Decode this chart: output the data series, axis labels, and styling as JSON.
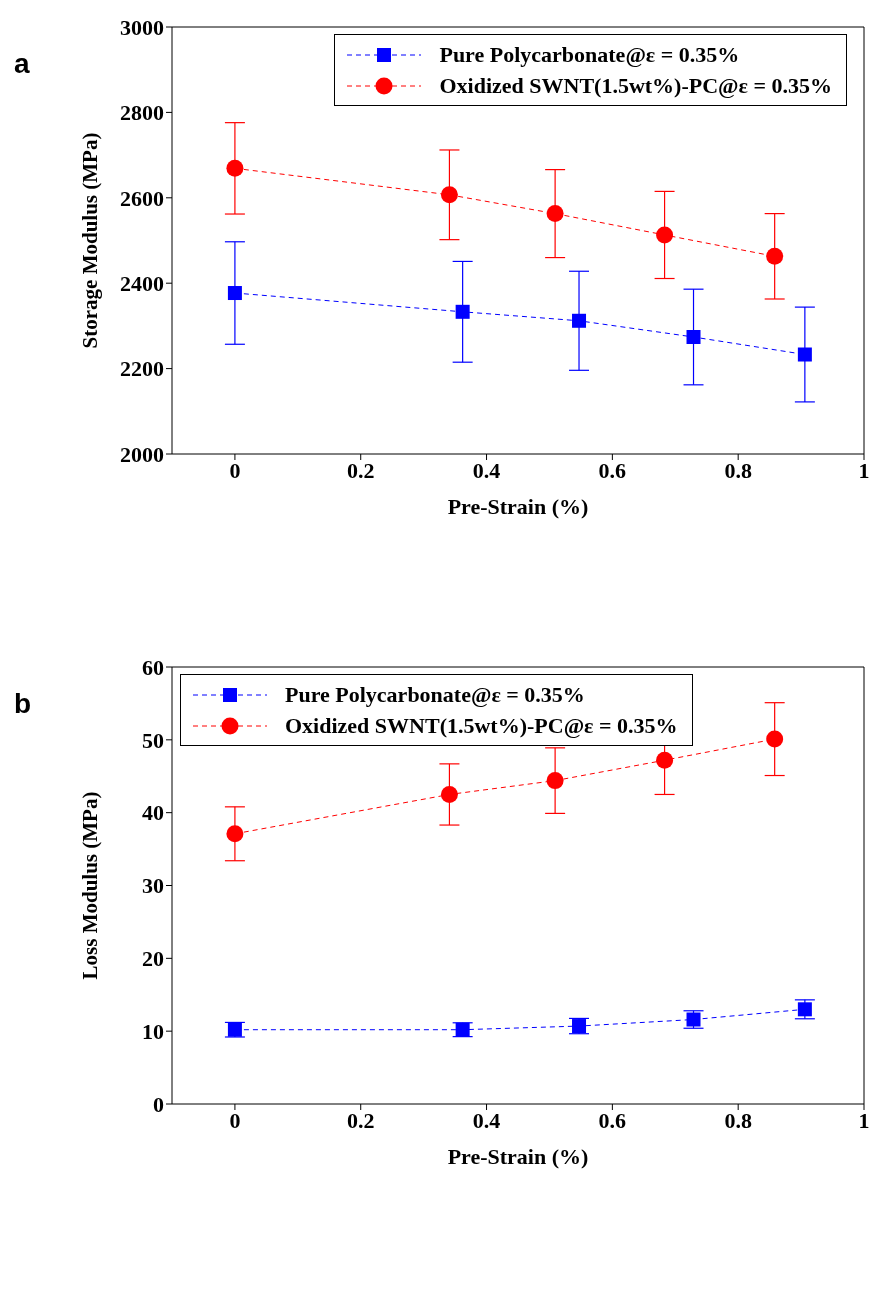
{
  "chart_data": [
    {
      "type": "line",
      "annotations": [
        "a"
      ],
      "xlabel": "Pre-Strain (%)",
      "ylabel": "Storage Modulus (MPa)",
      "xlim": [
        -0.1,
        1
      ],
      "xticks": [
        0,
        0.2,
        0.4,
        0.6,
        0.8,
        1
      ],
      "ylim": [
        2000,
        3000
      ],
      "yticks": [
        2000,
        2200,
        2400,
        2600,
        2800,
        3000
      ],
      "legend": "top right",
      "line_style": "dashed",
      "series": [
        {
          "name": "Pure Polycarbonate@ε = 0.35%",
          "color": "#0000ff",
          "marker": "square",
          "x": [
            0,
            0.362,
            0.547,
            0.729,
            0.906
          ],
          "values": [
            2377,
            2333,
            2312,
            2274,
            2233
          ],
          "errors": [
            120,
            118,
            116,
            112,
            111
          ]
        },
        {
          "name": "Oxidized SWNT(1.5wt%)-PC@ε = 0.35%",
          "color": "#ff0000",
          "marker": "circle",
          "x": [
            0,
            0.341,
            0.509,
            0.683,
            0.858
          ],
          "values": [
            2669,
            2607,
            2563,
            2513,
            2463
          ],
          "errors": [
            107,
            105,
            103,
            102,
            100
          ]
        }
      ]
    },
    {
      "type": "line",
      "annotations": [
        "b"
      ],
      "xlabel": "Pre-Strain (%)",
      "ylabel": "Loss Modulus (MPa)",
      "xlim": [
        -0.1,
        1
      ],
      "xticks": [
        0,
        0.2,
        0.4,
        0.6,
        0.8,
        1
      ],
      "ylim": [
        0,
        60
      ],
      "yticks": [
        0,
        10,
        20,
        30,
        40,
        50,
        60
      ],
      "legend": "top left",
      "line_style": "dashed",
      "series": [
        {
          "name": "Pure Polycarbonate@ε = 0.35%",
          "color": "#0000ff",
          "marker": "square",
          "x": [
            0,
            0.362,
            0.547,
            0.729,
            0.906
          ],
          "values": [
            10.2,
            10.2,
            10.7,
            11.6,
            13.0
          ],
          "errors": [
            1.0,
            0.95,
            1.05,
            1.2,
            1.3
          ]
        },
        {
          "name": "Oxidized SWNT(1.5wt%)-PC@ε = 0.35%",
          "color": "#ff0000",
          "marker": "circle",
          "x": [
            0,
            0.341,
            0.509,
            0.683,
            0.858
          ],
          "values": [
            37.1,
            42.5,
            44.4,
            47.2,
            50.1
          ],
          "errors": [
            3.7,
            4.2,
            4.5,
            4.7,
            5.0
          ]
        }
      ]
    }
  ]
}
